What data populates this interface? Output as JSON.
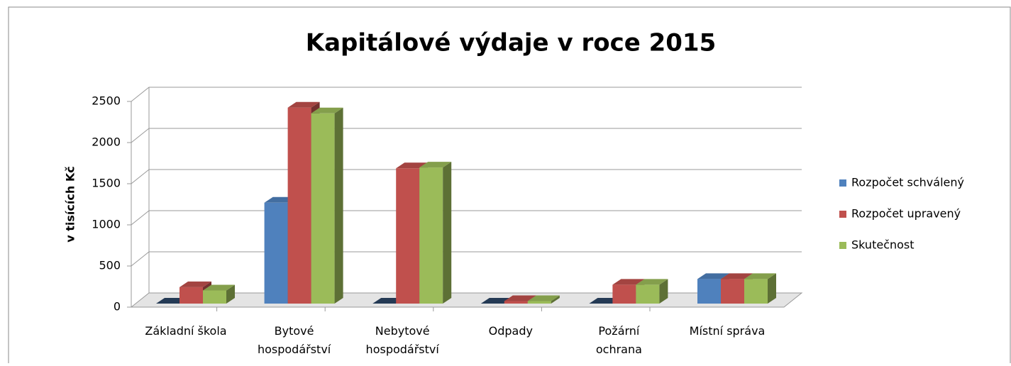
{
  "chart_data": {
    "type": "bar3d",
    "title": "Kapitálové výdaje v roce 2015",
    "ylabel": "v tisících Kč",
    "categories": [
      "Základní škola",
      "Bytové\nhospodářství",
      "Nebytové\nhospodářství",
      "Odpady",
      "Požární\nochrana",
      "Místní správa"
    ],
    "series": [
      {
        "name": "Rozpočet schválený",
        "color": "#4f81bd",
        "values": [
          0,
          1230,
          0,
          0,
          0,
          300
        ]
      },
      {
        "name": "Rozpočet upravený",
        "color": "#c0504d",
        "values": [
          200,
          2390,
          1650,
          30,
          230,
          300
        ]
      },
      {
        "name": "Skutečnost",
        "color": "#9bbb59",
        "values": [
          160,
          2320,
          1660,
          30,
          230,
          300
        ]
      }
    ],
    "ylim": [
      0,
      2500
    ],
    "yticks": [
      0,
      500,
      1000,
      1500,
      2000,
      2500
    ],
    "grid": true,
    "legend": "right"
  }
}
